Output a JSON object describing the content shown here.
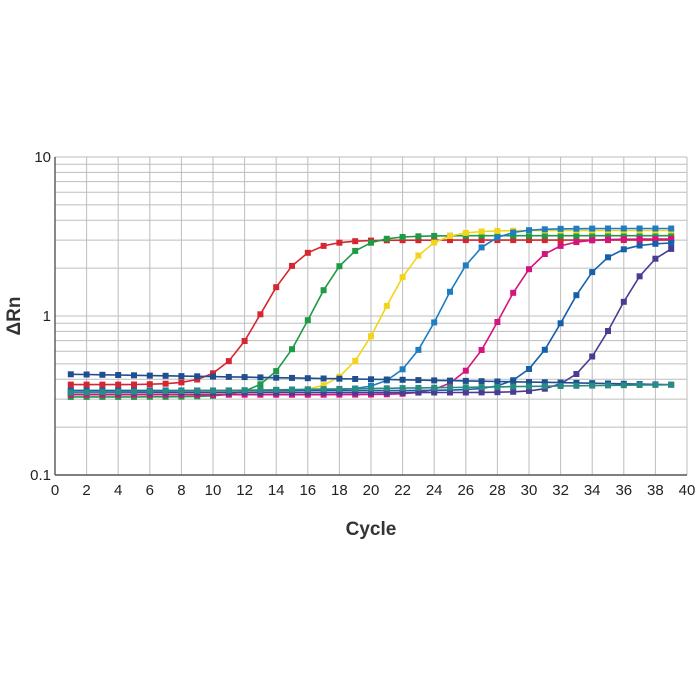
{
  "chart_data": {
    "type": "line",
    "title": "",
    "xlabel": "Cycle",
    "ylabel": "ΔRn",
    "y_scale": "log",
    "xlim": [
      0,
      40
    ],
    "ylim": [
      0.1,
      10
    ],
    "x_ticks": [
      "0",
      "2",
      "4",
      "6",
      "8",
      "10",
      "12",
      "14",
      "16",
      "18",
      "20",
      "22",
      "24",
      "26",
      "28",
      "30",
      "32",
      "34",
      "36",
      "38",
      "40"
    ],
    "y_ticks": [
      "0.1",
      "1",
      "10"
    ],
    "grid": true,
    "legend": "none",
    "marker": "square",
    "series": [
      {
        "color": "#d62631",
        "baseline": 0.37,
        "plateau": 3.0,
        "midpoint": 14.3,
        "slope": 0.85
      },
      {
        "color": "#1f9a45",
        "baseline": 0.31,
        "plateau": 3.2,
        "midpoint": 17.5,
        "slope": 0.85
      },
      {
        "color": "#f2d51a",
        "baseline": 0.33,
        "plateau": 3.45,
        "midpoint": 22.2,
        "slope": 0.85
      },
      {
        "color": "#1f7ec1",
        "baseline": 0.34,
        "plateau": 3.55,
        "midpoint": 25.8,
        "slope": 0.85
      },
      {
        "color": "#d4157f",
        "baseline": 0.32,
        "plateau": 3.05,
        "midpoint": 29.5,
        "slope": 0.85
      },
      {
        "color": "#1560a8",
        "baseline": 0.34,
        "plateau": 2.9,
        "midpoint": 33.5,
        "slope": 0.85
      },
      {
        "color": "#4a3b93",
        "baseline": 0.33,
        "plateau": 3.0,
        "midpoint": 36.8,
        "slope": 0.85
      },
      {
        "color": "#1f4f8f",
        "flat_from": 0.43,
        "flat_to": 0.37
      },
      {
        "color": "#2a8a84",
        "flat_from": 0.33,
        "flat_to": 0.37
      }
    ]
  }
}
